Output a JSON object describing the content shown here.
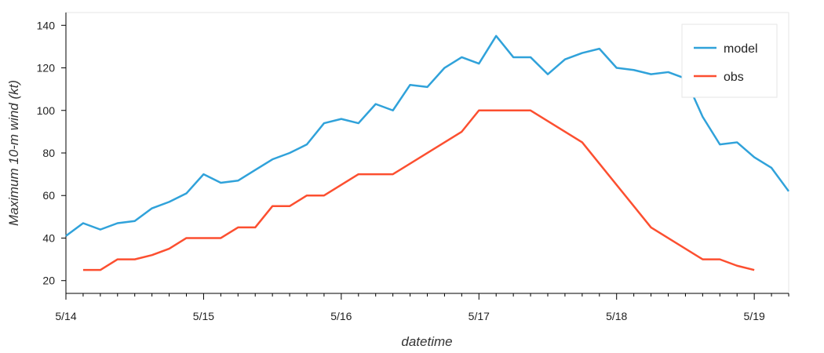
{
  "chart_data": {
    "type": "line",
    "xlabel": "datetime",
    "ylabel": "Maximum 10-m wind (kt)",
    "xlim": [
      0,
      5.25
    ],
    "ylim": [
      14,
      146
    ],
    "x_ticks": [
      {
        "x": 0,
        "label": "5/14"
      },
      {
        "x": 1,
        "label": "5/15"
      },
      {
        "x": 2,
        "label": "5/16"
      },
      {
        "x": 3,
        "label": "5/17"
      },
      {
        "x": 4,
        "label": "5/18"
      },
      {
        "x": 5,
        "label": "5/19"
      }
    ],
    "y_ticks": [
      20,
      40,
      60,
      80,
      100,
      120,
      140
    ],
    "legend_position": "top-right",
    "grid": false,
    "series": [
      {
        "name": "model",
        "color": "#30a2da",
        "points": [
          [
            0.0,
            41
          ],
          [
            0.125,
            47
          ],
          [
            0.25,
            44
          ],
          [
            0.375,
            47
          ],
          [
            0.5,
            48
          ],
          [
            0.625,
            54
          ],
          [
            0.75,
            57
          ],
          [
            0.875,
            61
          ],
          [
            1.0,
            70
          ],
          [
            1.125,
            66
          ],
          [
            1.25,
            67
          ],
          [
            1.375,
            72
          ],
          [
            1.5,
            77
          ],
          [
            1.625,
            80
          ],
          [
            1.75,
            84
          ],
          [
            1.875,
            94
          ],
          [
            2.0,
            96
          ],
          [
            2.125,
            94
          ],
          [
            2.25,
            103
          ],
          [
            2.375,
            100
          ],
          [
            2.5,
            112
          ],
          [
            2.625,
            111
          ],
          [
            2.75,
            120
          ],
          [
            2.875,
            125
          ],
          [
            3.0,
            122
          ],
          [
            3.125,
            135
          ],
          [
            3.25,
            125
          ],
          [
            3.375,
            125
          ],
          [
            3.5,
            117
          ],
          [
            3.625,
            124
          ],
          [
            3.75,
            127
          ],
          [
            3.875,
            129
          ],
          [
            4.0,
            120
          ],
          [
            4.125,
            119
          ],
          [
            4.25,
            117
          ],
          [
            4.375,
            118
          ],
          [
            4.5,
            115
          ],
          [
            4.625,
            97
          ],
          [
            4.75,
            84
          ],
          [
            4.875,
            85
          ],
          [
            5.0,
            78
          ],
          [
            5.125,
            73
          ],
          [
            5.25,
            62
          ]
        ]
      },
      {
        "name": "obs",
        "color": "#fc4f30",
        "points": [
          [
            0.125,
            25
          ],
          [
            0.25,
            25
          ],
          [
            0.375,
            30
          ],
          [
            0.5,
            30
          ],
          [
            0.625,
            32
          ],
          [
            0.75,
            35
          ],
          [
            0.875,
            40
          ],
          [
            1.0,
            40
          ],
          [
            1.125,
            40
          ],
          [
            1.25,
            45
          ],
          [
            1.375,
            45
          ],
          [
            1.5,
            55
          ],
          [
            1.625,
            55
          ],
          [
            1.75,
            60
          ],
          [
            1.875,
            60
          ],
          [
            2.125,
            70
          ],
          [
            2.25,
            70
          ],
          [
            2.375,
            70
          ],
          [
            2.875,
            90
          ],
          [
            3.0,
            100
          ],
          [
            3.375,
            100
          ],
          [
            3.75,
            85
          ],
          [
            4.25,
            45
          ],
          [
            4.625,
            30
          ],
          [
            4.75,
            30
          ],
          [
            4.875,
            27
          ],
          [
            5.0,
            25
          ]
        ]
      }
    ]
  }
}
